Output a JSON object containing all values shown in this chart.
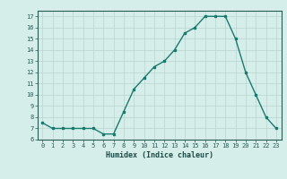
{
  "x": [
    0,
    1,
    2,
    3,
    4,
    5,
    6,
    7,
    8,
    9,
    10,
    11,
    12,
    13,
    14,
    15,
    16,
    17,
    18,
    19,
    20,
    21,
    22,
    23
  ],
  "y": [
    7.5,
    7.0,
    7.0,
    7.0,
    7.0,
    7.0,
    6.5,
    6.5,
    8.5,
    10.5,
    11.5,
    12.5,
    13.0,
    14.0,
    15.5,
    16.0,
    17.0,
    17.0,
    17.0,
    15.0,
    12.0,
    10.0,
    8.0,
    7.0
  ],
  "xlabel": "Humidex (Indice chaleur)",
  "ylim": [
    6,
    17.5
  ],
  "xlim": [
    -0.5,
    23.5
  ],
  "yticks": [
    6,
    7,
    8,
    9,
    10,
    11,
    12,
    13,
    14,
    15,
    16,
    17
  ],
  "xticks": [
    0,
    1,
    2,
    3,
    4,
    5,
    6,
    7,
    8,
    9,
    10,
    11,
    12,
    13,
    14,
    15,
    16,
    17,
    18,
    19,
    20,
    21,
    22,
    23
  ],
  "line_color": "#1a7a6e",
  "marker": "s",
  "marker_size": 2,
  "bg_color": "#d6eeea",
  "grid_color": "#b8d4d0",
  "line_width": 1.0,
  "tick_color": "#2a5a54",
  "label_color": "#1a4a44",
  "tick_fontsize": 5.0,
  "xlabel_fontsize": 6.0
}
